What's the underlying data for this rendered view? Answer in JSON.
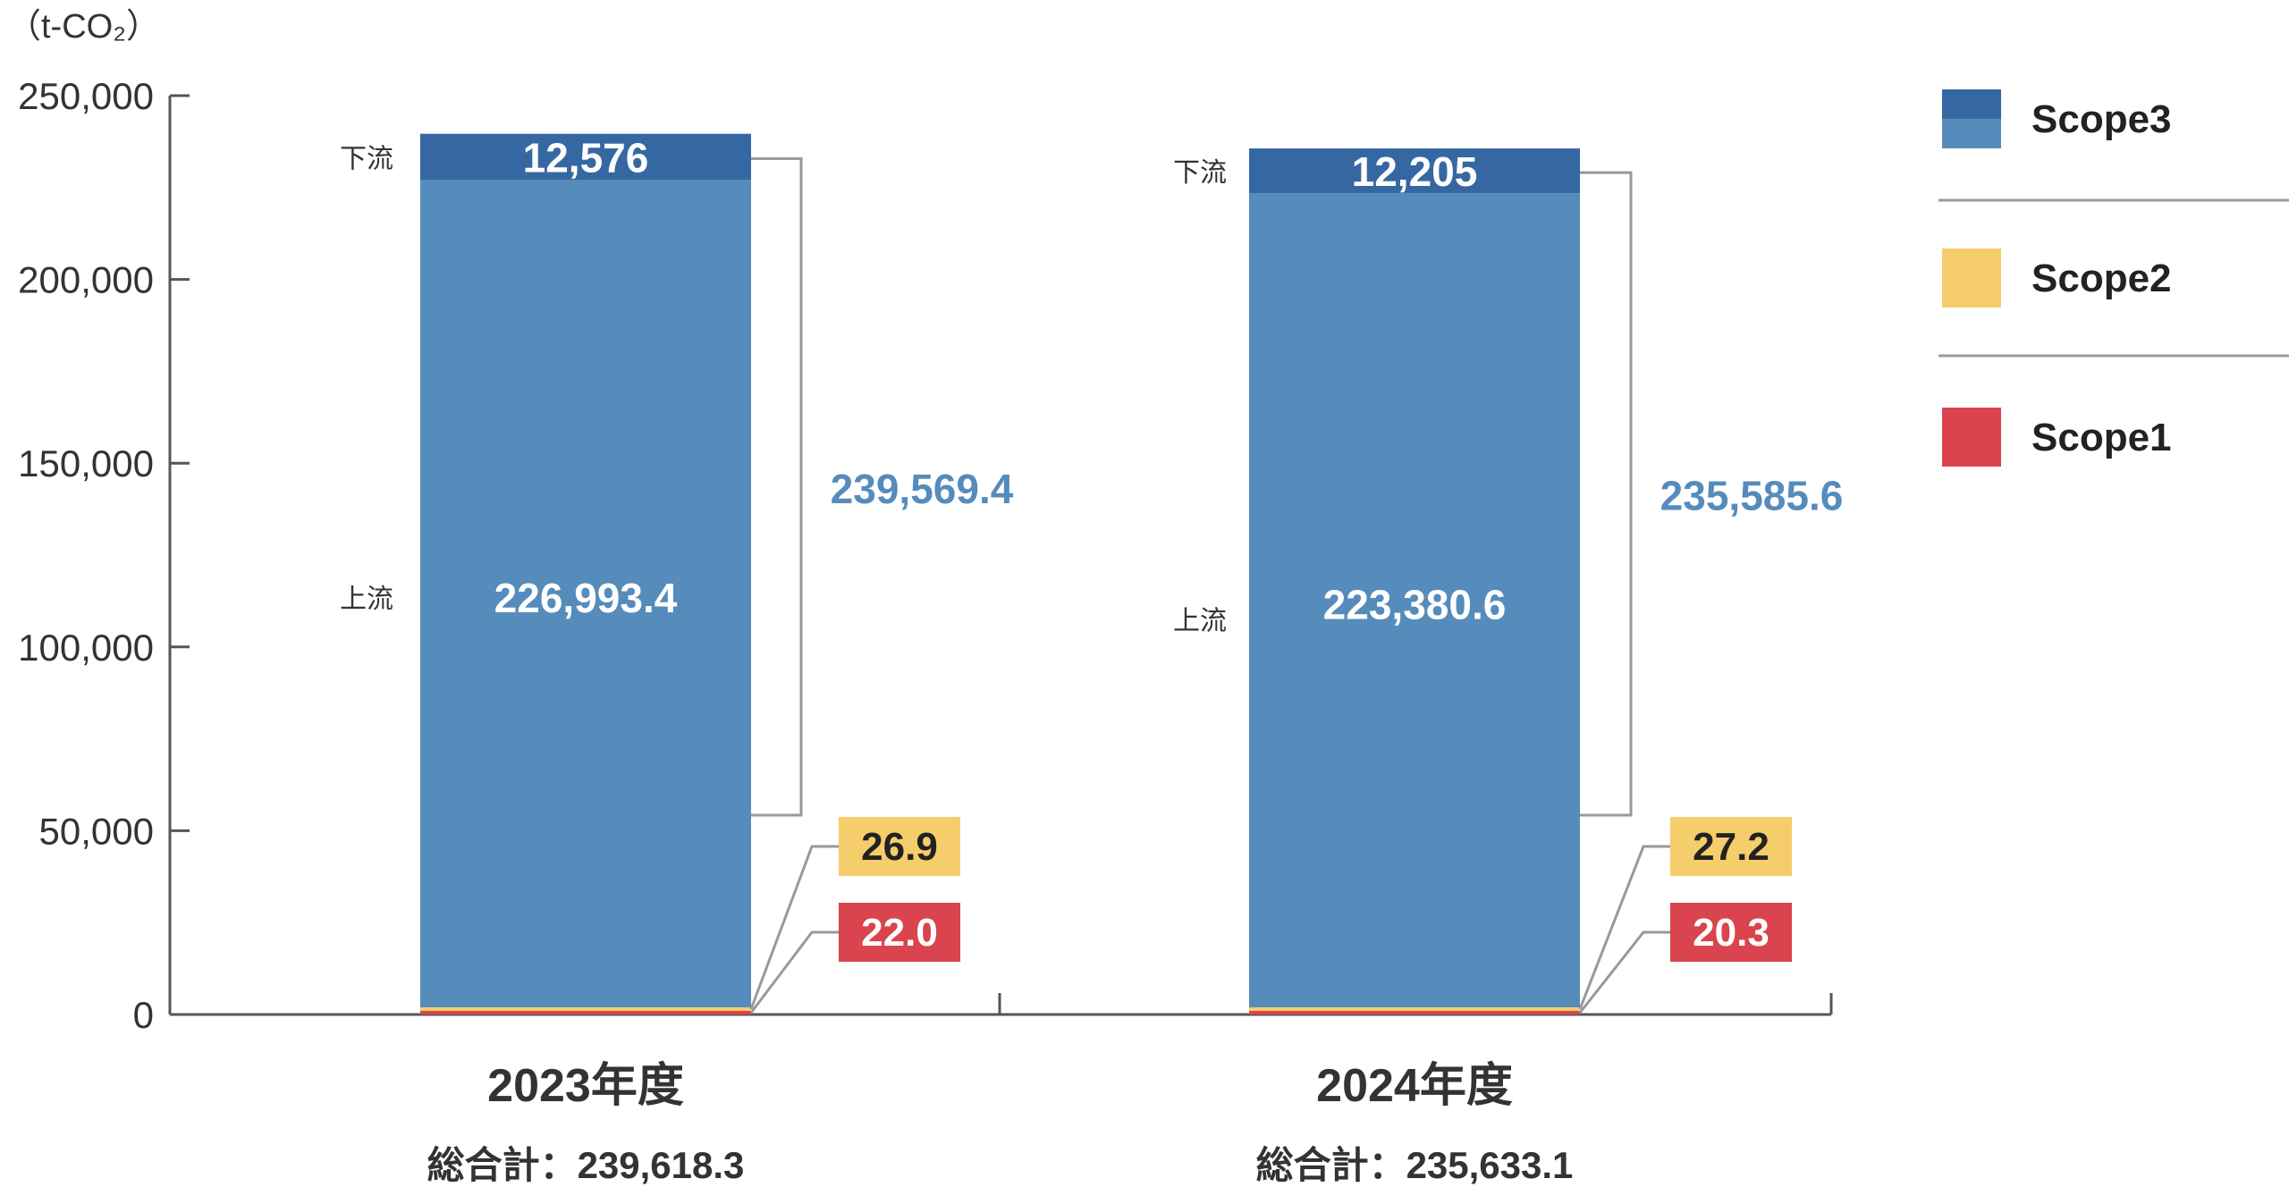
{
  "chart_data": {
    "type": "bar",
    "stacked": true,
    "unit_label": "（t-CO₂）",
    "y_ticks": [
      "0",
      "50,000",
      "100,000",
      "150,000",
      "200,000",
      "250,000"
    ],
    "ylim": [
      0,
      250000
    ],
    "categories": [
      "2023年度",
      "2024年度"
    ],
    "totals": [
      "総合計：239,618.3",
      "総合計：235,633.1"
    ],
    "series": [
      {
        "name": "Scope1",
        "values": [
          22.0,
          20.3
        ],
        "labels": [
          "22.0",
          "20.3"
        ],
        "color": "#d9444f"
      },
      {
        "name": "Scope2",
        "values": [
          26.9,
          27.2
        ],
        "labels": [
          "26.9",
          "27.2"
        ],
        "color": "#f5cd6a"
      },
      {
        "name": "上流",
        "values": [
          226993.4,
          223380.6
        ],
        "labels": [
          "226,993.4",
          "223,380.6"
        ],
        "color": "#558cbb"
      },
      {
        "name": "下流",
        "values": [
          12576,
          12205
        ],
        "labels": [
          "12,576",
          "12,205"
        ],
        "color": "#3568a3"
      }
    ],
    "scope3_totals": [
      "239,569.4",
      "235,585.6"
    ],
    "segment_names": {
      "upstream": "上流",
      "downstream": "下流"
    },
    "legend": [
      {
        "label": "Scope3",
        "colors": [
          "#3568a3",
          "#558cbb"
        ]
      },
      {
        "label": "Scope2",
        "colors": [
          "#f5cd6a"
        ]
      },
      {
        "label": "Scope1",
        "colors": [
          "#d9444f"
        ]
      }
    ],
    "legend_position": "right",
    "grid": false
  }
}
